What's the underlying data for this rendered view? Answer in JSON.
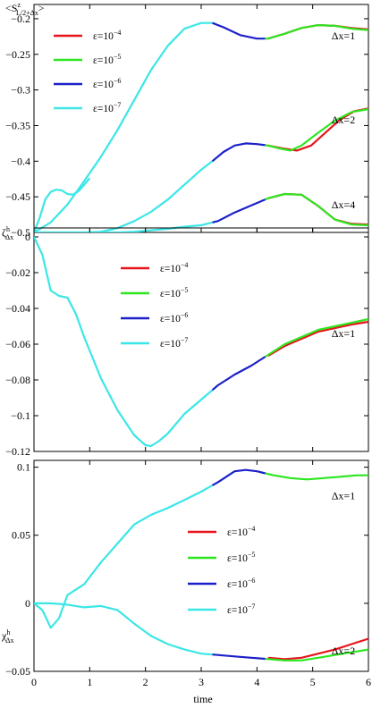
{
  "x_axis_label": "time",
  "chart_data": [
    {
      "type": "line",
      "ylabel_main": "<S",
      "ylabel_sup": "z",
      "ylabel_sub": "L/2+Δx",
      "ylabel_end": ">",
      "xlim": [
        0,
        6
      ],
      "ylim": [
        -0.5,
        -0.18
      ],
      "xticks": [
        "0",
        "1",
        "2",
        "3",
        "4",
        "5",
        "6"
      ],
      "yticks": [
        {
          "v": -0.2,
          "label": "−0.2"
        },
        {
          "v": -0.25,
          "label": "−0.25"
        },
        {
          "v": -0.3,
          "label": "−0.3"
        },
        {
          "v": -0.35,
          "label": "−0.35"
        },
        {
          "v": -0.4,
          "label": "−0.4"
        },
        {
          "v": -0.45,
          "label": "−0.45"
        },
        {
          "v": -0.5,
          "label": "−0.5"
        }
      ],
      "legend": {
        "position": "top-left",
        "entries": [
          {
            "name": "ε=10",
            "exp": "−4",
            "color": "#e8141c"
          },
          {
            "name": "ε=10",
            "exp": "−5",
            "color": "#2ee620"
          },
          {
            "name": "ε=10",
            "exp": "−6",
            "color": "#1c20c8"
          },
          {
            "name": "ε=10",
            "exp": "−7",
            "color": "#3ce6e6"
          }
        ]
      },
      "curves": [
        {
          "label": "Δx=1",
          "label_at": [
            5.55,
            -0.224
          ],
          "x": [
            0,
            0.3,
            0.6,
            0.9,
            1.2,
            1.5,
            1.8,
            2.1,
            2.4,
            2.7,
            3.0,
            3.2,
            3.4,
            3.7,
            4.0,
            4.2,
            4.5,
            4.8,
            5.1,
            5.4,
            5.7,
            6.0
          ],
          "y": [
            -0.5,
            -0.486,
            -0.461,
            -0.428,
            -0.394,
            -0.356,
            -0.314,
            -0.272,
            -0.238,
            -0.214,
            -0.206,
            -0.206,
            -0.212,
            -0.223,
            -0.228,
            -0.228,
            -0.221,
            -0.213,
            -0.209,
            -0.21,
            -0.214,
            -0.216
          ],
          "red_from": 4.2,
          "red_y": [
            -0.228,
            -0.221,
            -0.213,
            -0.209,
            -0.21,
            -0.213,
            -0.215
          ]
        },
        {
          "label": "Δx=2",
          "label_at": [
            5.55,
            -0.342
          ],
          "x": [
            0,
            0.3,
            0.6,
            0.9,
            1.2,
            1.5,
            1.8,
            2.1,
            2.4,
            2.7,
            3.0,
            3.2,
            3.4,
            3.6,
            3.8,
            4.0,
            4.2,
            4.4,
            4.6,
            4.8,
            5.1,
            5.4,
            5.7,
            6.0
          ],
          "y": [
            -0.5,
            -0.5,
            -0.5,
            -0.5,
            -0.499,
            -0.494,
            -0.484,
            -0.471,
            -0.454,
            -0.433,
            -0.412,
            -0.4,
            -0.387,
            -0.378,
            -0.375,
            -0.376,
            -0.378,
            -0.382,
            -0.385,
            -0.378,
            -0.36,
            -0.343,
            -0.331,
            -0.327
          ],
          "red_from": 4.2,
          "red_y": [
            -0.378,
            -0.382,
            -0.385,
            -0.378,
            -0.36,
            -0.342,
            -0.33,
            -0.326
          ]
        },
        {
          "label": "Δx=4",
          "label_at": [
            5.55,
            -0.461
          ],
          "x": [
            0,
            0.3,
            0.6,
            0.9,
            1.2,
            1.5,
            1.8,
            2.1,
            2.4,
            2.7,
            3.0,
            3.3,
            3.6,
            3.9,
            4.2,
            4.5,
            4.8,
            5.1,
            5.4,
            5.7,
            6.0
          ],
          "y": [
            -0.5,
            -0.5,
            -0.5,
            -0.5,
            -0.5,
            -0.5,
            -0.499,
            -0.497,
            -0.495,
            -0.492,
            -0.49,
            -0.484,
            -0.472,
            -0.462,
            -0.452,
            -0.446,
            -0.447,
            -0.463,
            -0.482,
            -0.489,
            -0.49
          ],
          "red_from": 4.2,
          "red_y": [
            -0.452,
            -0.446,
            -0.447,
            -0.463,
            -0.482,
            -0.488,
            -0.489
          ]
        },
        {
          "label": "",
          "x": [
            0,
            0.1,
            0.2,
            0.3,
            0.4,
            0.5,
            0.6,
            0.7,
            0.8,
            0.9,
            1.0
          ],
          "y": [
            -0.5,
            -0.48,
            -0.454,
            -0.443,
            -0.44,
            -0.441,
            -0.446,
            -0.447,
            -0.442,
            -0.433,
            -0.424
          ],
          "red_from": null,
          "red_y": []
        }
      ]
    },
    {
      "type": "line",
      "ylabel_main": "ζ",
      "ylabel_sup": "h",
      "ylabel_sub": "Δx",
      "ylabel_end": "",
      "xlim": [
        0,
        6
      ],
      "ylim": [
        -0.12,
        0.005
      ],
      "xticks": [
        "0",
        "1",
        "2",
        "3",
        "4",
        "5",
        "6"
      ],
      "yticks": [
        {
          "v": 0,
          "label": "0"
        },
        {
          "v": -0.02,
          "label": "−0.02"
        },
        {
          "v": -0.04,
          "label": "−0.04"
        },
        {
          "v": -0.06,
          "label": "−0.06"
        },
        {
          "v": -0.08,
          "label": "−0.08"
        },
        {
          "v": -0.1,
          "label": "−0.1"
        },
        {
          "v": -0.12,
          "label": "−0.12"
        }
      ],
      "legend": {
        "position": "center",
        "entries": [
          {
            "name": "ε=10",
            "exp": "−4",
            "color": "#e8141c"
          },
          {
            "name": "ε=10",
            "exp": "−5",
            "color": "#2ee620"
          },
          {
            "name": "ε=10",
            "exp": "−6",
            "color": "#1c20c8"
          },
          {
            "name": "ε=10",
            "exp": "−7",
            "color": "#3ce6e6"
          }
        ]
      },
      "curves": [
        {
          "label": "Δx=1",
          "label_at": [
            5.55,
            -0.054
          ],
          "x": [
            0,
            0.15,
            0.3,
            0.45,
            0.6,
            0.75,
            0.9,
            1.2,
            1.5,
            1.8,
            2.0,
            2.1,
            2.25,
            2.4,
            2.7,
            3.0,
            3.3,
            3.6,
            3.9,
            4.2,
            4.5,
            4.8,
            5.1,
            5.4,
            5.7,
            6.0
          ],
          "y": [
            0,
            -0.01,
            -0.03,
            -0.033,
            -0.034,
            -0.043,
            -0.056,
            -0.079,
            -0.097,
            -0.111,
            -0.1165,
            -0.117,
            -0.114,
            -0.11,
            -0.099,
            -0.091,
            -0.083,
            -0.077,
            -0.072,
            -0.066,
            -0.06,
            -0.056,
            -0.052,
            -0.05,
            -0.048,
            -0.046
          ],
          "red_from": 4.2,
          "red_y": [
            -0.0665,
            -0.061,
            -0.057,
            -0.053,
            -0.051,
            -0.049,
            -0.0475
          ]
        }
      ]
    },
    {
      "type": "line",
      "ylabel_main": "χ",
      "ylabel_sup": "h",
      "ylabel_sub": "Δx",
      "ylabel_end": "",
      "xlim": [
        0,
        6
      ],
      "ylim": [
        -0.05,
        0.105
      ],
      "xticks": [
        "0",
        "1",
        "2",
        "3",
        "4",
        "5",
        "6"
      ],
      "yticks": [
        {
          "v": 0.1,
          "label": "0.1"
        },
        {
          "v": 0.05,
          "label": "0.05"
        },
        {
          "v": 0,
          "label": "0"
        },
        {
          "v": -0.05,
          "label": "−0.05"
        }
      ],
      "legend": {
        "position": "center-right",
        "entries": [
          {
            "name": "ε=10",
            "exp": "−4",
            "color": "#e8141c"
          },
          {
            "name": "ε=10",
            "exp": "−5",
            "color": "#2ee620"
          },
          {
            "name": "ε=10",
            "exp": "−6",
            "color": "#1c20c8"
          },
          {
            "name": "ε=10",
            "exp": "−7",
            "color": "#3ce6e6"
          }
        ]
      },
      "curves": [
        {
          "label": "Δx=1",
          "label_at": [
            5.55,
            0.079
          ],
          "x": [
            0,
            0.15,
            0.3,
            0.45,
            0.6,
            0.9,
            1.2,
            1.5,
            1.8,
            2.1,
            2.4,
            2.7,
            3.0,
            3.3,
            3.6,
            3.8,
            4.0,
            4.3,
            4.6,
            4.9,
            5.2,
            5.5,
            5.8,
            6.0
          ],
          "y": [
            0,
            -0.005,
            -0.018,
            -0.011,
            0.006,
            0.014,
            0.03,
            0.044,
            0.058,
            0.065,
            0.07,
            0.076,
            0.082,
            0.089,
            0.097,
            0.098,
            0.097,
            0.094,
            0.092,
            0.091,
            0.092,
            0.093,
            0.094,
            0.094
          ],
          "red_from": null,
          "red_y": []
        },
        {
          "label": "Δx=2",
          "label_at": [
            5.55,
            -0.035
          ],
          "x": [
            0,
            0.3,
            0.6,
            0.9,
            1.2,
            1.5,
            1.8,
            2.1,
            2.4,
            2.7,
            3.0,
            3.3,
            3.6,
            3.9,
            4.2,
            4.5,
            4.8,
            5.1,
            5.4,
            5.7,
            6.0
          ],
          "y": [
            0,
            0,
            -0.001,
            -0.003,
            -0.002,
            -0.005,
            -0.015,
            -0.024,
            -0.03,
            -0.034,
            -0.037,
            -0.038,
            -0.039,
            -0.04,
            -0.041,
            -0.042,
            -0.042,
            -0.04,
            -0.038,
            -0.036,
            -0.034
          ],
          "red_from": 4.2,
          "red_y": [
            -0.04,
            -0.041,
            -0.04,
            -0.037,
            -0.034,
            -0.03,
            -0.026
          ]
        }
      ]
    }
  ]
}
